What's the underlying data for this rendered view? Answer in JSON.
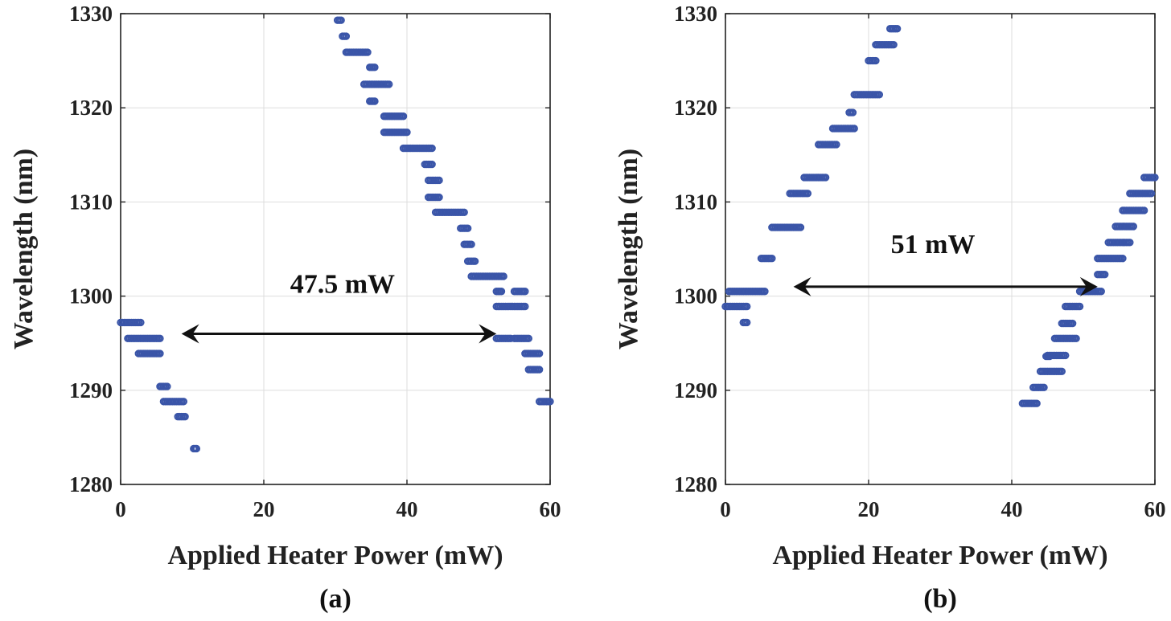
{
  "colors": {
    "marker": "#3a55a8",
    "axis": "#222222",
    "grid": "#dddddd",
    "arrow": "#111111"
  },
  "chart_data": [
    {
      "type": "scatter",
      "panel_label": "(a)",
      "xlabel": "Applied Heater Power (mW)",
      "ylabel": "Wavelength (nm)",
      "xlim": [
        0,
        60
      ],
      "ylim": [
        1280,
        1330
      ],
      "xticks": [
        0,
        20,
        40,
        60
      ],
      "yticks": [
        1280,
        1290,
        1300,
        1310,
        1320,
        1330
      ],
      "grid": true,
      "marker": "open-circle",
      "annotation": {
        "text": "47.5 mW",
        "arrow_x": [
          8.5,
          52.5
        ],
        "arrow_y": 1296,
        "text_x": 31,
        "text_y": 1299.5
      },
      "segments": [
        {
          "x": [
            0,
            2.8
          ],
          "y": 1297.2
        },
        {
          "x": [
            1,
            5.5
          ],
          "y": 1295.5
        },
        {
          "x": [
            2.5,
            5.5
          ],
          "y": 1293.9
        },
        {
          "x": [
            5.5,
            6.5
          ],
          "y": 1290.4
        },
        {
          "x": [
            6,
            8.8
          ],
          "y": 1288.8
        },
        {
          "x": [
            8,
            9
          ],
          "y": 1287.2
        },
        {
          "x": [
            10.2,
            10.6
          ],
          "y": 1283.8
        },
        {
          "x": [
            30.3,
            30.8
          ],
          "y": 1329.3
        },
        {
          "x": [
            31,
            31.5
          ],
          "y": 1327.6
        },
        {
          "x": [
            31.5,
            34.5
          ],
          "y": 1325.9
        },
        {
          "x": [
            34.8,
            35.5
          ],
          "y": 1324.3
        },
        {
          "x": [
            34,
            37.5
          ],
          "y": 1322.5
        },
        {
          "x": [
            34.8,
            35.5
          ],
          "y": 1320.7
        },
        {
          "x": [
            36.8,
            39.5
          ],
          "y": 1319.1
        },
        {
          "x": [
            36.8,
            40
          ],
          "y": 1317.4
        },
        {
          "x": [
            39.5,
            43.5
          ],
          "y": 1315.7
        },
        {
          "x": [
            42.5,
            43.5
          ],
          "y": 1314
        },
        {
          "x": [
            43,
            44.5
          ],
          "y": 1312.3
        },
        {
          "x": [
            43,
            44.5
          ],
          "y": 1310.5
        },
        {
          "x": [
            44,
            48
          ],
          "y": 1308.9
        },
        {
          "x": [
            47.5,
            48.5
          ],
          "y": 1307.2
        },
        {
          "x": [
            48,
            49
          ],
          "y": 1305.5
        },
        {
          "x": [
            48.5,
            49.5
          ],
          "y": 1303.7
        },
        {
          "x": [
            49,
            53.5
          ],
          "y": 1302.1
        },
        {
          "x": [
            52.5,
            53.2
          ],
          "y": 1300.5
        },
        {
          "x": [
            52.5,
            56.5
          ],
          "y": 1298.9
        },
        {
          "x": [
            55,
            56.5
          ],
          "y": 1300.5
        },
        {
          "x": [
            52.5,
            54.5
          ],
          "y": 1295.5
        },
        {
          "x": [
            55,
            57
          ],
          "y": 1295.5
        },
        {
          "x": [
            56.5,
            58.5
          ],
          "y": 1293.9
        },
        {
          "x": [
            57,
            58.5
          ],
          "y": 1292.2
        },
        {
          "x": [
            58.5,
            60
          ],
          "y": 1288.8
        }
      ]
    },
    {
      "type": "scatter",
      "panel_label": "(b)",
      "xlabel": "Applied Heater Power (mW)",
      "ylabel": "Wavelength (nm)",
      "xlim": [
        0,
        60
      ],
      "ylim": [
        1280,
        1330
      ],
      "xticks": [
        0,
        20,
        40,
        60
      ],
      "yticks": [
        1280,
        1290,
        1300,
        1310,
        1320,
        1330
      ],
      "grid": true,
      "marker": "open-circle",
      "annotation": {
        "text": "51 mW",
        "arrow_x": [
          9.5,
          52
        ],
        "arrow_y": 1301,
        "text_x": 29,
        "text_y": 1303.7
      },
      "segments": [
        {
          "x": [
            0,
            3
          ],
          "y": 1298.9
        },
        {
          "x": [
            0.5,
            5.5
          ],
          "y": 1300.5
        },
        {
          "x": [
            2.5,
            3
          ],
          "y": 1297.2
        },
        {
          "x": [
            5,
            6.5
          ],
          "y": 1304
        },
        {
          "x": [
            6.5,
            10.5
          ],
          "y": 1307.3
        },
        {
          "x": [
            9,
            11.5
          ],
          "y": 1310.9
        },
        {
          "x": [
            11,
            14
          ],
          "y": 1312.6
        },
        {
          "x": [
            13,
            15.5
          ],
          "y": 1316.1
        },
        {
          "x": [
            15,
            18
          ],
          "y": 1317.8
        },
        {
          "x": [
            17.3,
            17.8
          ],
          "y": 1319.5
        },
        {
          "x": [
            18,
            21.5
          ],
          "y": 1321.4
        },
        {
          "x": [
            20,
            21
          ],
          "y": 1325
        },
        {
          "x": [
            21,
            23.5
          ],
          "y": 1326.7
        },
        {
          "x": [
            23,
            24
          ],
          "y": 1328.4
        },
        {
          "x": [
            41.5,
            43.5
          ],
          "y": 1288.6
        },
        {
          "x": [
            43,
            44.5
          ],
          "y": 1290.3
        },
        {
          "x": [
            44,
            47
          ],
          "y": 1292
        },
        {
          "x": [
            44.8,
            45.3
          ],
          "y": 1293.6
        },
        {
          "x": [
            45,
            47.5
          ],
          "y": 1293.7
        },
        {
          "x": [
            46,
            49
          ],
          "y": 1295.5
        },
        {
          "x": [
            47,
            48.5
          ],
          "y": 1297.1
        },
        {
          "x": [
            47.5,
            49.5
          ],
          "y": 1298.9
        },
        {
          "x": [
            49.5,
            52.5
          ],
          "y": 1300.5
        },
        {
          "x": [
            52,
            53
          ],
          "y": 1302.3
        },
        {
          "x": [
            52,
            55.5
          ],
          "y": 1304
        },
        {
          "x": [
            53.5,
            56.5
          ],
          "y": 1305.7
        },
        {
          "x": [
            54.5,
            57
          ],
          "y": 1307.4
        },
        {
          "x": [
            55.5,
            58.5
          ],
          "y": 1309.1
        },
        {
          "x": [
            56.5,
            59.5
          ],
          "y": 1310.9
        },
        {
          "x": [
            58.5,
            60
          ],
          "y": 1312.6
        }
      ]
    }
  ]
}
